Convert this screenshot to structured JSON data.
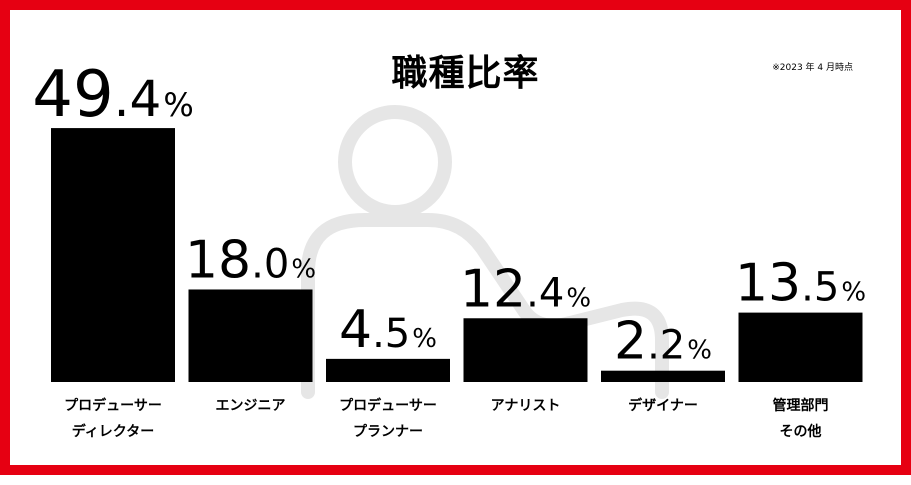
{
  "chart_data": {
    "type": "bar",
    "title": "職種比率",
    "note": "※2023 年 4 月時点",
    "unit": "%",
    "categories": [
      [
        "プロデューサー",
        "ディレクター"
      ],
      [
        "エンジニア"
      ],
      [
        "プロデューサー",
        "プランナー"
      ],
      [
        "アナリスト"
      ],
      [
        "デザイナー"
      ],
      [
        "管理部門",
        "その他"
      ]
    ],
    "values": [
      49.4,
      18.0,
      4.5,
      12.4,
      2.2,
      13.5
    ],
    "value_labels": [
      {
        "int": "49",
        "dec": ".4",
        "pct": "%"
      },
      {
        "int": "18",
        "dec": ".0",
        "pct": "%"
      },
      {
        "int": "4",
        "dec": ".5",
        "pct": "%"
      },
      {
        "int": "12",
        "dec": ".4",
        "pct": "%"
      },
      {
        "int": "2",
        "dec": ".2",
        "pct": "%"
      },
      {
        "int": "13",
        "dec": ".5",
        "pct": "%"
      }
    ],
    "ylim": [
      0,
      50
    ],
    "grid": false,
    "bar_color": "#000000"
  },
  "colors": {
    "frame": "#e60012",
    "bars": "#000000",
    "background_figure": "#e6e6e6"
  },
  "icons": {
    "background": "person-outline-icon"
  }
}
